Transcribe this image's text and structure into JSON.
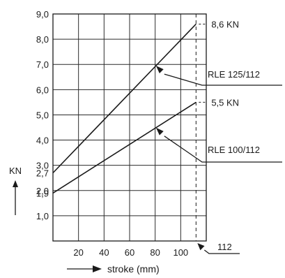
{
  "chart_data": {
    "type": "line",
    "title": "",
    "xlabel": "stroke (mm)",
    "ylabel": "KN",
    "xlim": [
      0,
      120
    ],
    "ylim": [
      0,
      9
    ],
    "x_ticks": [
      20,
      40,
      60,
      80,
      100
    ],
    "x_tick_labels": [
      "20",
      "40",
      "60",
      "80",
      "100"
    ],
    "y_ticks": [
      1,
      2,
      3,
      4,
      5,
      6,
      7,
      8,
      9
    ],
    "y_tick_labels": [
      "1,0",
      "2,0",
      "3,0",
      "4,0",
      "5,0",
      "6,0",
      "7,0",
      "8,0",
      "9,0"
    ],
    "extra_y_labels": [
      {
        "value": 2.7,
        "text": "2,7"
      },
      {
        "value": 1.9,
        "text": "1,9"
      }
    ],
    "grid": true,
    "series": [
      {
        "name": "RLE 125/112",
        "x": [
          0,
          112
        ],
        "y": [
          2.7,
          8.6
        ],
        "end_label": "8,6 KN"
      },
      {
        "name": "RLE 100/112",
        "x": [
          0,
          112
        ],
        "y": [
          1.9,
          5.5
        ],
        "end_label": "5,5 KN"
      }
    ],
    "vline": {
      "x": 112,
      "label": "112"
    }
  }
}
